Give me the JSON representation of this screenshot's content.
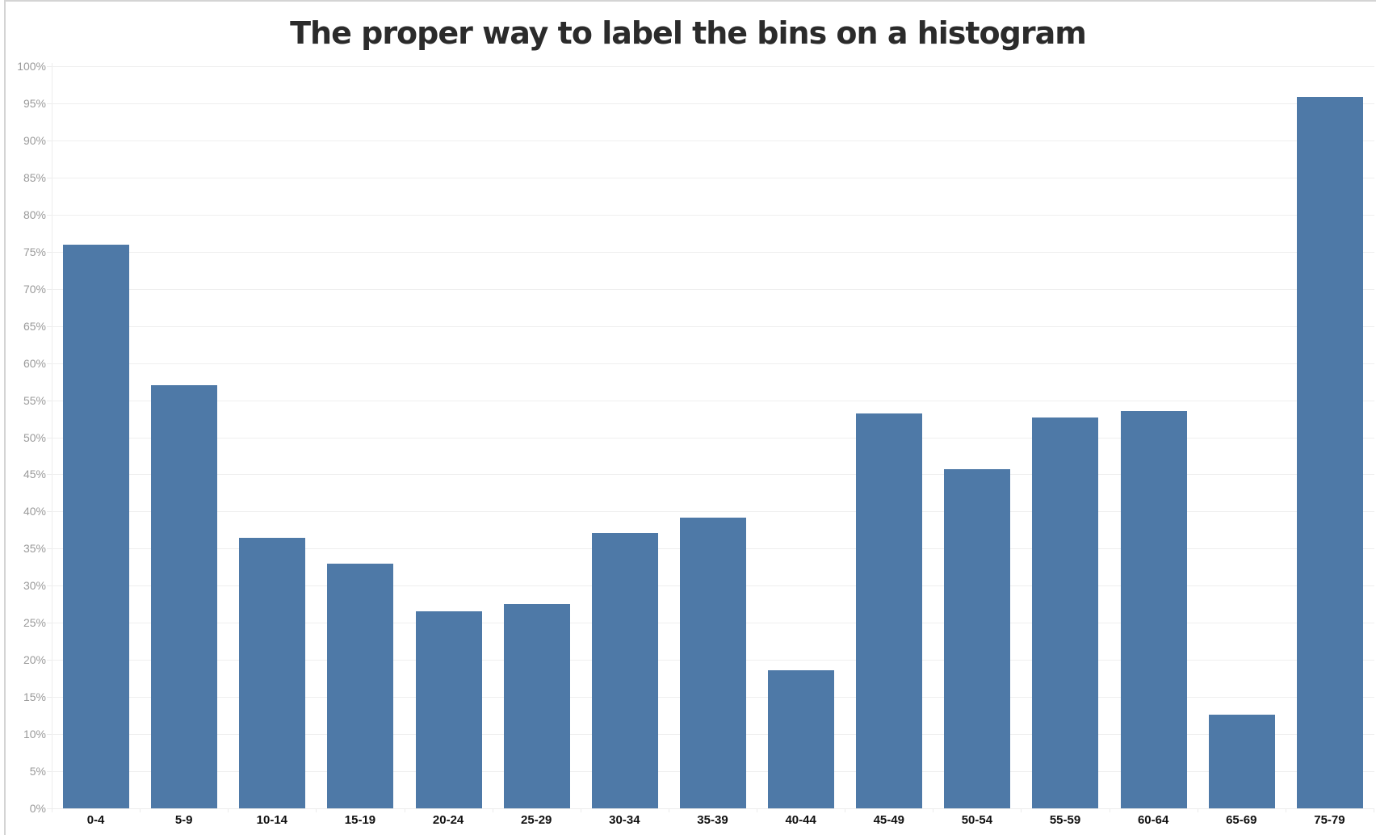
{
  "chart_data": {
    "type": "bar",
    "title": "The proper way to label the bins on a histogram",
    "xlabel": "",
    "ylabel": "",
    "ylim": [
      0,
      100
    ],
    "y_format": "percent",
    "y_ticks": [
      "0%",
      "5%",
      "10%",
      "15%",
      "20%",
      "25%",
      "30%",
      "35%",
      "40%",
      "45%",
      "50%",
      "55%",
      "60%",
      "65%",
      "70%",
      "75%",
      "80%",
      "85%",
      "90%",
      "95%",
      "100%"
    ],
    "grid": true,
    "legend": null,
    "bar_color": "#4e79a7",
    "categories": [
      "0-4",
      "5-9",
      "10-14",
      "15-19",
      "20-24",
      "25-29",
      "30-34",
      "35-39",
      "40-44",
      "45-49",
      "50-54",
      "55-59",
      "60-64",
      "65-69",
      "75-79"
    ],
    "values": [
      75.9,
      57.0,
      36.4,
      33.0,
      26.5,
      27.5,
      37.1,
      39.2,
      18.6,
      53.2,
      45.7,
      52.7,
      53.5,
      12.6,
      95.9
    ]
  },
  "colors": {
    "bar": "#4e79a7",
    "title": "#2b2b2b",
    "tick_label": "#9a9a9a",
    "category_label": "#111111",
    "gridline": "#efefef"
  }
}
